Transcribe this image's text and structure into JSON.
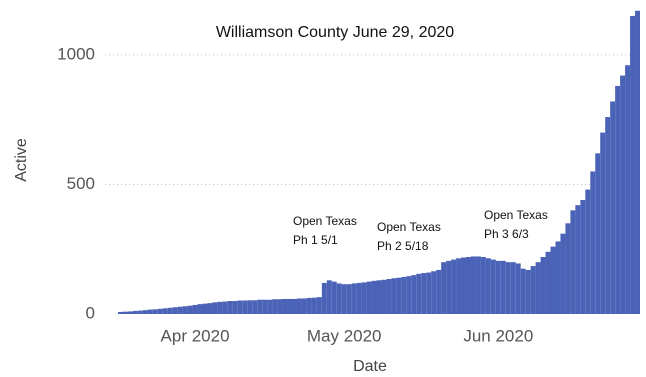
{
  "chart_data": {
    "type": "bar",
    "title": "Williamson County June 29, 2020",
    "x_label": "Date",
    "y_label": "Active",
    "color": "#4b63b6",
    "categories": [
      null,
      null,
      null,
      null,
      null,
      null,
      null,
      null,
      null,
      null,
      null,
      null,
      null,
      null,
      null,
      "Apr 2020",
      null,
      null,
      null,
      null,
      null,
      null,
      null,
      null,
      null,
      null,
      null,
      null,
      null,
      null,
      null,
      null,
      null,
      null,
      null,
      null,
      null,
      null,
      null,
      null,
      null,
      null,
      null,
      null,
      null,
      "May 2020",
      null,
      null,
      null,
      null,
      null,
      null,
      null,
      null,
      null,
      null,
      null,
      null,
      null,
      null,
      null,
      null,
      null,
      null,
      null,
      null,
      null,
      null,
      null,
      null,
      null,
      null,
      null,
      null,
      null,
      null,
      "Jun 2020",
      null,
      null,
      null,
      null,
      null,
      null,
      null,
      null,
      null,
      null,
      null,
      null,
      null,
      null,
      null,
      null,
      null,
      null,
      null,
      null,
      null,
      null,
      null,
      null,
      null,
      null,
      null,
      null
    ],
    "values": [
      8,
      9,
      10,
      12,
      13,
      15,
      17,
      18,
      20,
      22,
      24,
      26,
      28,
      30,
      32,
      35,
      38,
      40,
      42,
      45,
      47,
      48,
      50,
      50,
      52,
      52,
      53,
      53,
      55,
      55,
      55,
      57,
      57,
      58,
      58,
      58,
      60,
      60,
      62,
      63,
      65,
      120,
      130,
      125,
      118,
      115,
      115,
      118,
      120,
      122,
      125,
      128,
      130,
      132,
      135,
      138,
      140,
      143,
      146,
      150,
      155,
      158,
      160,
      165,
      170,
      200,
      205,
      210,
      215,
      218,
      220,
      222,
      222,
      220,
      215,
      210,
      205,
      205,
      200,
      200,
      195,
      175,
      170,
      185,
      200,
      220,
      240,
      260,
      280,
      310,
      350,
      400,
      420,
      440,
      480,
      550,
      620,
      700,
      760,
      820,
      880,
      920,
      960,
      1150,
      1170
    ],
    "ylim": [
      0,
      1200
    ],
    "yticks": [
      0,
      500,
      1000
    ],
    "grid": true,
    "annotations": [
      [
        "Open Texas",
        "Ph 1 5/1"
      ],
      [
        "Open Texas",
        "Ph 2 5/18"
      ],
      [
        "Open Texas",
        "Ph 3 6/3"
      ]
    ]
  }
}
